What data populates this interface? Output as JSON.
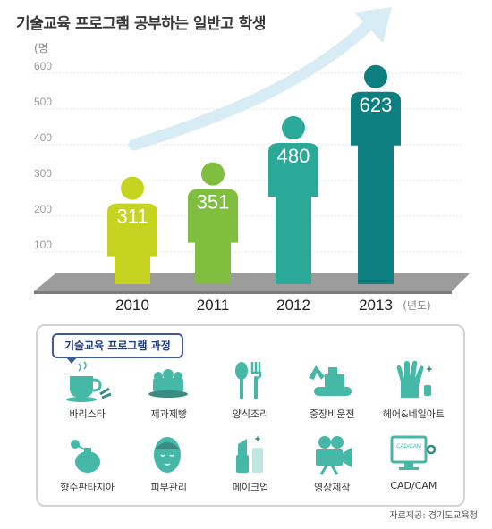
{
  "chart_data": {
    "type": "bar",
    "title": "기술교육 프로그램 공부하는 일반고 학생",
    "ylabel": "(명",
    "xlabel": "(년도)",
    "categories": [
      "2010",
      "2011",
      "2012",
      "2013"
    ],
    "values": [
      311,
      351,
      480,
      623
    ],
    "value_labels": [
      "311",
      "351",
      "480",
      "623"
    ],
    "yticks": [
      "100",
      "200",
      "300",
      "400",
      "500",
      "600"
    ],
    "ylim": [
      0,
      650
    ],
    "colors": [
      "#c6d421",
      "#7fbe3f",
      "#2aa998",
      "#0e7f80"
    ]
  },
  "panel": {
    "title": "기술교육 프로그램 과정",
    "items": [
      {
        "label": "바리스타",
        "icon": "coffee-cup-icon"
      },
      {
        "label": "제과제빵",
        "icon": "cake-icon"
      },
      {
        "label": "양식조리",
        "icon": "cutlery-icon"
      },
      {
        "label": "중장비운전",
        "icon": "excavator-icon"
      },
      {
        "label": "헤어&네일아트",
        "icon": "nail-hand-icon"
      },
      {
        "label": "향수판타지아",
        "icon": "perfume-bottle-icon"
      },
      {
        "label": "피부관리",
        "icon": "face-mask-icon"
      },
      {
        "label": "메이크업",
        "icon": "lipstick-icon"
      },
      {
        "label": "영상제작",
        "icon": "film-camera-icon"
      },
      {
        "label": "CAD/CAM",
        "icon": "cad-monitor-icon"
      }
    ],
    "cad_screen_text": "CAD/CAM"
  },
  "source": "자료제공: 경기도교육청",
  "colors": {
    "icon": "#45b8a8",
    "panel_border": "#3f5a98",
    "arrow": "#d8ecf6"
  }
}
